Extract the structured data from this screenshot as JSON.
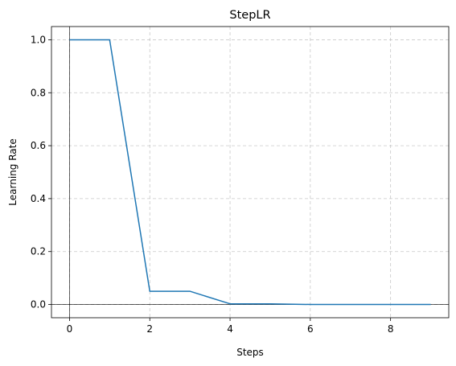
{
  "chart_data": {
    "type": "line",
    "title": "StepLR",
    "xlabel": "Steps",
    "ylabel": "Learning Rate",
    "xlim": [
      -0.45,
      9.45
    ],
    "ylim": [
      -0.05,
      1.05
    ],
    "xticks": [
      0,
      2,
      4,
      6,
      8
    ],
    "xtick_labels": [
      "0",
      "2",
      "4",
      "6",
      "8"
    ],
    "yticks": [
      0.0,
      0.2,
      0.4,
      0.6,
      0.8,
      1.0
    ],
    "ytick_labels": [
      "0.0",
      "0.2",
      "0.4",
      "0.6",
      "0.8",
      "1.0"
    ],
    "grid": true,
    "reference_lines": {
      "x": 0,
      "y": 0
    },
    "series": [
      {
        "color": "#1f77b4",
        "x": [
          0,
          1,
          2,
          3,
          4,
          5,
          6,
          7,
          8,
          9
        ],
        "values": [
          1.0,
          1.0,
          0.05,
          0.05,
          0.0025,
          0.0025,
          0.000125,
          0.000125,
          6.25e-06,
          6.25e-06
        ]
      }
    ]
  }
}
